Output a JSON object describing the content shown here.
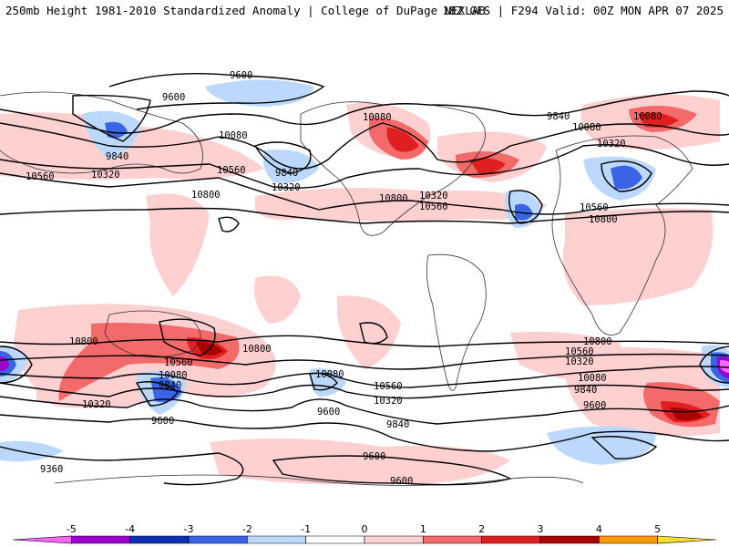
{
  "header": {
    "left_title": "250mb Height 1981-2010 Standardized Anomaly | College of DuPage NEXLAB",
    "right_title": "18Z GFS | F294 Valid: 00Z MON APR 07 2025"
  },
  "contour_labels": [
    "9600",
    "9600",
    "9840",
    "10080",
    "10320",
    "10560",
    "10800",
    "9840",
    "10320",
    "10080",
    "10560",
    "10800",
    "10320",
    "10560",
    "10080",
    "9840",
    "10080",
    "10320",
    "10560",
    "10800",
    "10800",
    "10800",
    "10560",
    "10080",
    "9840",
    "10320",
    "9600",
    "9360",
    "10080",
    "10560",
    "10320",
    "9600",
    "9840",
    "9600",
    "9600",
    "10800",
    "10560",
    "10320",
    "10080",
    "9840",
    "9600"
  ],
  "colorbar": {
    "ticks": [
      "-5",
      "-4",
      "-3",
      "-2",
      "-1",
      "0",
      "1",
      "2",
      "3",
      "4",
      "5"
    ],
    "colors": [
      "#ff66ff",
      "#9a00cc",
      "#1030b0",
      "#3a64e6",
      "#bcd8ff",
      "#ffffff",
      "#ffd0d0",
      "#f46a6a",
      "#e02020",
      "#a80000",
      "#ff9900",
      "#ffdd33"
    ]
  }
}
